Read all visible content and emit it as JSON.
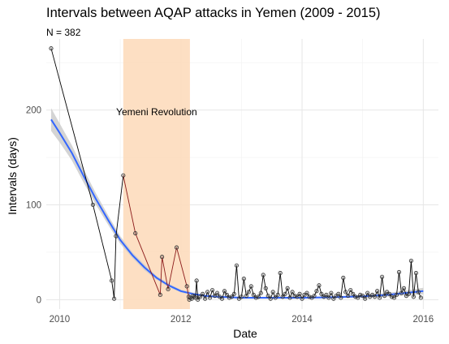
{
  "chart_data": {
    "type": "line",
    "title": "Intervals between AQAP attacks in Yemen (2009 - 2015)",
    "subtitle": "N = 382",
    "xlabel": "Date",
    "ylabel": "Intervals (days)",
    "xlim": [
      2009.78,
      2016.25
    ],
    "ylim": [
      -10,
      275
    ],
    "x_ticks": [
      2010,
      2012,
      2014,
      2016
    ],
    "x_tick_labels": [
      "2010",
      "2012",
      "2014",
      "2016"
    ],
    "y_ticks": [
      0,
      100,
      200
    ],
    "y_tick_labels": [
      "0",
      "100",
      "200"
    ],
    "grid": true,
    "legend": "none",
    "annotations": [
      {
        "type": "shaded_region",
        "label": "Yemeni Revolution",
        "x_start": 2011.05,
        "x_end": 2012.15,
        "color": "#fddcbd",
        "label_y": 198
      }
    ],
    "series": [
      {
        "type": "line_with_points",
        "line_color": "#000000",
        "highlight_color": "#8b1a1a",
        "highlight_range": [
          2011.05,
          2012.15
        ],
        "x": [
          2009.86,
          2010.55,
          2010.86,
          2010.9,
          2010.93,
          2011.05,
          2011.25,
          2011.66,
          2011.69,
          2011.79,
          2011.93,
          2012.1,
          2012.13,
          2012.14,
          2012.16,
          2012.18,
          2012.2,
          2012.22,
          2012.24,
          2012.26,
          2012.28,
          2012.32,
          2012.36,
          2012.4,
          2012.44,
          2012.48,
          2012.52,
          2012.56,
          2012.6,
          2012.64,
          2012.68,
          2012.72,
          2012.76,
          2012.8,
          2012.84,
          2012.88,
          2012.92,
          2012.96,
          2013.0,
          2013.04,
          2013.08,
          2013.12,
          2013.16,
          2013.2,
          2013.24,
          2013.28,
          2013.32,
          2013.36,
          2013.4,
          2013.44,
          2013.48,
          2013.52,
          2013.56,
          2013.6,
          2013.64,
          2013.68,
          2013.72,
          2013.76,
          2013.8,
          2013.84,
          2013.88,
          2013.92,
          2013.96,
          2014.0,
          2014.04,
          2014.08,
          2014.12,
          2014.16,
          2014.2,
          2014.24,
          2014.28,
          2014.32,
          2014.36,
          2014.4,
          2014.44,
          2014.48,
          2014.52,
          2014.56,
          2014.6,
          2014.64,
          2014.68,
          2014.72,
          2014.76,
          2014.8,
          2014.84,
          2014.88,
          2014.92,
          2014.96,
          2015.0,
          2015.04,
          2015.08,
          2015.12,
          2015.16,
          2015.2,
          2015.24,
          2015.28,
          2015.32,
          2015.36,
          2015.4,
          2015.44,
          2015.48,
          2015.52,
          2015.56,
          2015.6,
          2015.64,
          2015.68,
          2015.72,
          2015.76,
          2015.8,
          2015.84,
          2015.88,
          2015.92,
          2015.96
        ],
        "y": [
          265,
          100,
          20,
          1,
          67,
          131,
          70,
          5,
          45,
          11,
          55,
          14,
          3,
          0,
          2,
          1,
          4,
          3,
          2,
          20,
          0,
          3,
          6,
          1,
          8,
          2,
          10,
          4,
          7,
          3,
          1,
          9,
          5,
          2,
          3,
          6,
          36,
          1,
          3,
          22,
          4,
          8,
          14,
          5,
          2,
          3,
          7,
          26,
          12,
          4,
          1,
          8,
          2,
          5,
          28,
          3,
          6,
          12,
          2,
          8,
          4,
          3,
          6,
          1,
          5,
          7,
          3,
          2,
          4,
          9,
          15,
          6,
          3,
          5,
          2,
          7,
          1,
          4,
          6,
          2,
          23,
          8,
          4,
          10,
          6,
          3,
          2,
          5,
          4,
          1,
          7,
          3,
          5,
          3,
          9,
          2,
          24,
          4,
          8,
          6,
          3,
          2,
          5,
          29,
          7,
          12,
          4,
          6,
          41,
          3,
          28,
          8,
          2
        ]
      },
      {
        "type": "smooth",
        "line_color": "#3366ff",
        "band_color": "#cccccc",
        "x": [
          2009.86,
          2010.0,
          2010.2,
          2010.4,
          2010.6,
          2010.8,
          2011.0,
          2011.2,
          2011.4,
          2011.6,
          2011.8,
          2012.0,
          2012.2,
          2012.4,
          2012.6,
          2012.8,
          2013.0,
          2013.5,
          2014.0,
          2014.5,
          2015.0,
          2015.4,
          2015.7,
          2016.0
        ],
        "y": [
          190,
          176,
          155,
          130,
          106,
          84,
          63,
          47,
          34,
          23,
          15,
          9,
          6,
          4,
          3,
          2.5,
          2,
          2,
          2,
          2.5,
          3.5,
          5,
          7,
          9
        ],
        "y_lower": [
          178,
          166,
          147,
          123,
          100,
          79,
          59,
          44,
          31,
          21,
          13,
          7.5,
          4.5,
          3,
          2,
          1.5,
          1,
          1,
          1,
          1.5,
          2.2,
          3,
          4.5,
          5.5
        ],
        "y_upper": [
          202,
          186,
          163,
          137,
          112,
          89,
          67,
          50,
          37,
          25,
          17,
          10.5,
          7.5,
          5,
          4,
          3.5,
          3,
          3,
          3,
          3.5,
          4.8,
          7,
          9.5,
          12.5
        ]
      }
    ]
  }
}
